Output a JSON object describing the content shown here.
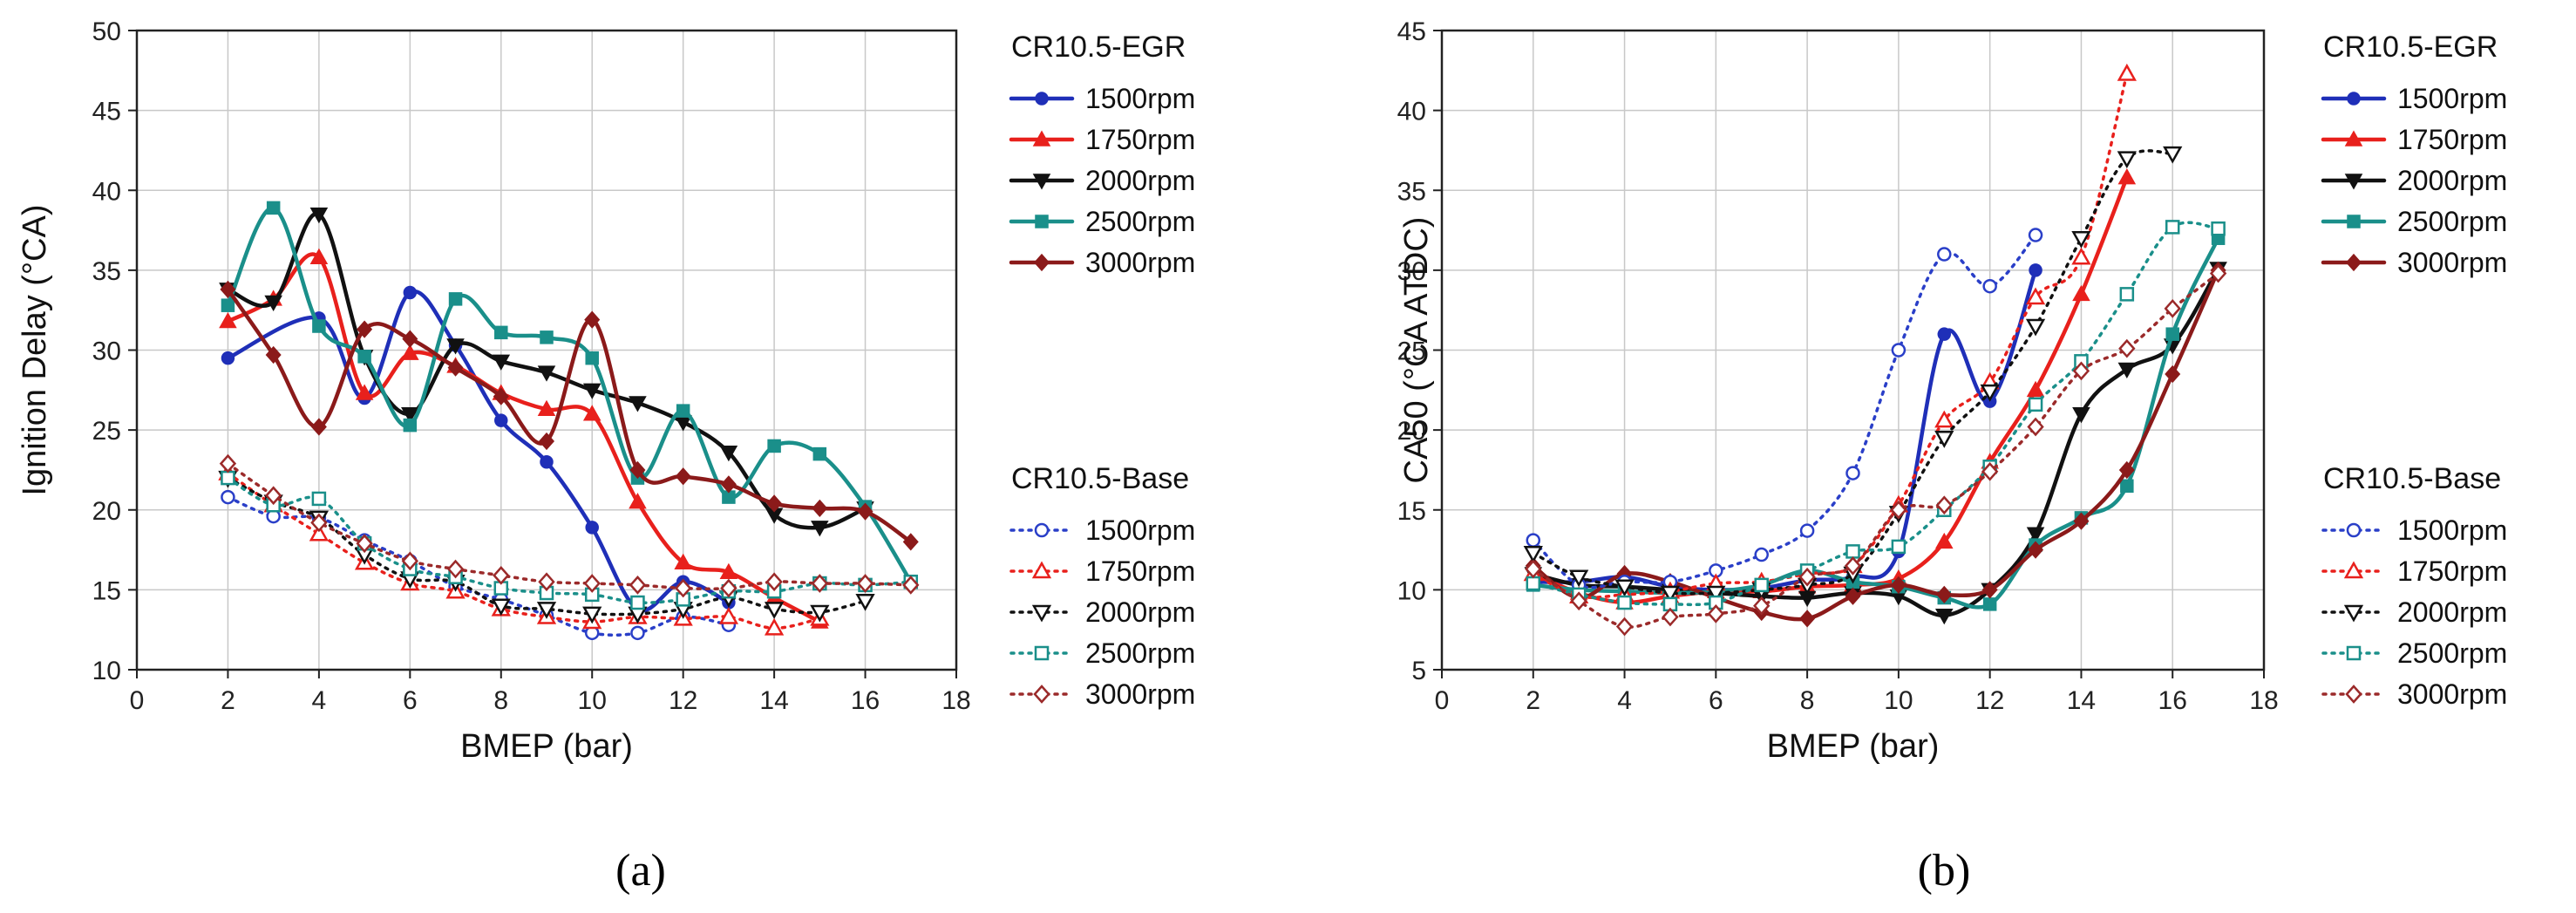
{
  "chart_data": [
    {
      "type": "line",
      "panel_label": "(a)",
      "xlabel": "BMEP (bar)",
      "ylabel": "Ignition Delay (°CA)",
      "xlim": [
        0,
        18
      ],
      "ylim": [
        10,
        50
      ],
      "xticks": [
        0,
        2,
        4,
        6,
        8,
        10,
        12,
        14,
        16,
        18
      ],
      "yticks": [
        10,
        15,
        20,
        25,
        30,
        35,
        40,
        45,
        50
      ],
      "grid": true,
      "legend_groups": [
        {
          "title": "CR10.5-EGR",
          "style": "solid"
        },
        {
          "title": "CR10.5-Base",
          "style": "dotted"
        }
      ],
      "series": [
        {
          "name": "1500rpm",
          "group": "CR10.5-EGR",
          "color": "#1f2fb8",
          "marker": "circle",
          "filled": true,
          "x": [
            2,
            4,
            5,
            6,
            7,
            8,
            9,
            10,
            11,
            12,
            13
          ],
          "y": [
            29.5,
            32,
            27,
            33.6,
            30.3,
            25.6,
            23,
            18.9,
            13.8,
            15.5,
            14.2
          ]
        },
        {
          "name": "1750rpm",
          "group": "CR10.5-EGR",
          "color": "#e8201c",
          "marker": "triangle-up",
          "filled": true,
          "x": [
            2,
            3,
            4,
            5,
            6,
            7,
            8,
            9,
            10,
            11,
            12,
            13,
            14,
            15
          ],
          "y": [
            31.8,
            33.2,
            35.8,
            27.3,
            29.8,
            29,
            27.3,
            26.3,
            26,
            20.5,
            16.7,
            16.1,
            14.5,
            13
          ]
        },
        {
          "name": "2000rpm",
          "group": "CR10.5-EGR",
          "color": "#111111",
          "marker": "triangle-down",
          "filled": true,
          "x": [
            2,
            3,
            4,
            5,
            6,
            7,
            8,
            9,
            10,
            11,
            12,
            13,
            14,
            15,
            16
          ],
          "y": [
            33.8,
            33,
            38.5,
            29.6,
            26,
            30.3,
            29.3,
            28.6,
            27.5,
            26.7,
            25.5,
            23.6,
            19.7,
            18.9,
            20.1
          ]
        },
        {
          "name": "2500rpm",
          "group": "CR10.5-EGR",
          "color": "#1a8f8a",
          "marker": "square",
          "filled": true,
          "x": [
            2,
            3,
            4,
            5,
            6,
            7,
            8,
            9,
            10,
            11,
            12,
            13,
            14,
            15,
            16,
            17
          ],
          "y": [
            32.8,
            38.9,
            31.5,
            29.6,
            25.3,
            33.2,
            31.1,
            30.8,
            29.5,
            22,
            26.2,
            20.8,
            24,
            23.5,
            20.2,
            15.5
          ]
        },
        {
          "name": "3000rpm",
          "group": "CR10.5-EGR",
          "color": "#8b1a1a",
          "marker": "diamond",
          "filled": true,
          "x": [
            2,
            3,
            4,
            5,
            6,
            7,
            8,
            9,
            10,
            11,
            12,
            13,
            14,
            15,
            16,
            17
          ],
          "y": [
            33.8,
            29.7,
            25.2,
            31.3,
            30.7,
            28.9,
            27.1,
            24.3,
            31.9,
            22.5,
            22.1,
            21.6,
            20.4,
            20.1,
            19.9,
            18
          ]
        },
        {
          "name": "1500rpm",
          "group": "CR10.5-Base",
          "color": "#2a3fc8",
          "marker": "circle",
          "filled": false,
          "x": [
            2,
            3,
            4,
            5,
            6,
            7,
            8,
            9,
            10,
            11,
            12,
            13
          ],
          "y": [
            20.8,
            19.6,
            19.5,
            18.1,
            16.8,
            15.2,
            14.4,
            13.4,
            12.3,
            12.3,
            13.3,
            12.8
          ]
        },
        {
          "name": "1750rpm",
          "group": "CR10.5-Base",
          "color": "#e8201c",
          "marker": "triangle-up",
          "filled": false,
          "x": [
            2,
            3,
            4,
            5,
            6,
            7,
            8,
            9,
            10,
            11,
            12,
            13,
            14,
            15
          ],
          "y": [
            22.3,
            20.3,
            18.5,
            16.7,
            15.4,
            14.9,
            13.8,
            13.3,
            13,
            13.3,
            13.2,
            13.3,
            12.6,
            13.2
          ]
        },
        {
          "name": "2000rpm",
          "group": "CR10.5-Base",
          "color": "#111111",
          "marker": "triangle-down",
          "filled": false,
          "x": [
            2,
            3,
            4,
            5,
            6,
            7,
            8,
            9,
            10,
            11,
            12,
            13,
            14,
            15,
            16
          ],
          "y": [
            22,
            20.5,
            19.5,
            17.2,
            15.7,
            15.5,
            14,
            13.8,
            13.5,
            13.5,
            13.8,
            14.5,
            13.8,
            13.6,
            14.3
          ]
        },
        {
          "name": "2500rpm",
          "group": "CR10.5-Base",
          "color": "#1a8f8a",
          "marker": "square",
          "filled": false,
          "x": [
            2,
            3,
            4,
            5,
            6,
            7,
            8,
            9,
            10,
            11,
            12,
            13,
            14,
            15,
            16,
            17
          ],
          "y": [
            22,
            20.3,
            20.7,
            17.9,
            16.3,
            15.8,
            15.1,
            14.8,
            14.7,
            14.2,
            14.4,
            14.9,
            14.9,
            15.4,
            15.3,
            15.5
          ]
        },
        {
          "name": "3000rpm",
          "group": "CR10.5-Base",
          "color": "#9b2a2a",
          "marker": "diamond",
          "filled": false,
          "x": [
            2,
            3,
            4,
            5,
            6,
            7,
            8,
            9,
            10,
            11,
            12,
            13,
            14,
            15,
            16,
            17
          ],
          "y": [
            22.9,
            20.9,
            19.2,
            17.9,
            16.8,
            16.3,
            15.9,
            15.5,
            15.4,
            15.3,
            15.1,
            15.1,
            15.5,
            15.4,
            15.4,
            15.3
          ]
        }
      ]
    },
    {
      "type": "line",
      "panel_label": "(b)",
      "xlabel": "BMEP (bar)",
      "ylabel": "CA50 (°CA ATDC)",
      "xlim": [
        0,
        18
      ],
      "ylim": [
        5,
        45
      ],
      "xticks": [
        0,
        2,
        4,
        6,
        8,
        10,
        12,
        14,
        16,
        18
      ],
      "yticks": [
        5,
        10,
        15,
        20,
        25,
        30,
        35,
        40,
        45
      ],
      "grid": true,
      "legend_groups": [
        {
          "title": "CR10.5-EGR",
          "style": "solid"
        },
        {
          "title": "CR10.5-Base",
          "style": "dotted"
        }
      ],
      "series": [
        {
          "name": "1500rpm",
          "group": "CR10.5-EGR",
          "color": "#1f2fb8",
          "marker": "circle",
          "filled": true,
          "x": [
            2,
            3,
            4,
            5,
            6,
            7,
            8,
            9,
            10,
            11,
            12,
            13
          ],
          "y": [
            10.5,
            10.5,
            10.8,
            10.2,
            10,
            10.1,
            10.6,
            10.8,
            12.4,
            26,
            21.8,
            30
          ]
        },
        {
          "name": "1750rpm",
          "group": "CR10.5-EGR",
          "color": "#e8201c",
          "marker": "triangle-up",
          "filled": true,
          "x": [
            2,
            3,
            4,
            5,
            6,
            7,
            8,
            9,
            10,
            11,
            12,
            13,
            14,
            15
          ],
          "y": [
            11,
            9.8,
            9.2,
            9.6,
            9.9,
            9.9,
            10.2,
            10.3,
            10.7,
            13,
            18,
            22.5,
            28.5,
            35.8
          ]
        },
        {
          "name": "2000rpm",
          "group": "CR10.5-EGR",
          "color": "#111111",
          "marker": "triangle-down",
          "filled": true,
          "x": [
            2,
            3,
            4,
            5,
            6,
            7,
            8,
            9,
            10,
            11,
            12,
            13,
            14,
            15,
            16,
            17
          ],
          "y": [
            11,
            10.3,
            10.2,
            10,
            9.8,
            9.6,
            9.5,
            9.8,
            9.6,
            8.4,
            10,
            13.5,
            21,
            23.8,
            25.3,
            30.1
          ]
        },
        {
          "name": "2500rpm",
          "group": "CR10.5-EGR",
          "color": "#1a8f8a",
          "marker": "square",
          "filled": true,
          "x": [
            2,
            3,
            4,
            5,
            6,
            7,
            8,
            9,
            10,
            11,
            12,
            13,
            14,
            15,
            16,
            17
          ],
          "y": [
            10.3,
            10,
            9.9,
            9.8,
            9.9,
            10.3,
            11.2,
            10.5,
            10.2,
            9.5,
            9.1,
            12.8,
            14.5,
            16.5,
            26,
            32
          ]
        },
        {
          "name": "3000rpm",
          "group": "CR10.5-EGR",
          "color": "#8b1a1a",
          "marker": "diamond",
          "filled": true,
          "x": [
            2,
            3,
            4,
            5,
            6,
            7,
            8,
            9,
            10,
            11,
            12,
            13,
            14,
            15,
            16,
            17
          ],
          "y": [
            11.5,
            9.5,
            11,
            10.5,
            9.5,
            8.6,
            8.2,
            9.6,
            10.3,
            9.7,
            10,
            12.5,
            14.3,
            17.5,
            23.5,
            30
          ]
        },
        {
          "name": "1500rpm",
          "group": "CR10.5-Base",
          "color": "#2a3fc8",
          "marker": "circle",
          "filled": false,
          "x": [
            2,
            3,
            4,
            5,
            6,
            7,
            8,
            9,
            10,
            11,
            12,
            13
          ],
          "y": [
            13.1,
            10.3,
            10.5,
            10.5,
            11.2,
            12.2,
            13.7,
            17.3,
            25,
            31,
            29,
            32.2
          ]
        },
        {
          "name": "1750rpm",
          "group": "CR10.5-Base",
          "color": "#e8201c",
          "marker": "triangle-up",
          "filled": false,
          "x": [
            2,
            3,
            4,
            5,
            6,
            7,
            8,
            9,
            10,
            11,
            12,
            13,
            14,
            15
          ],
          "y": [
            11,
            9.6,
            9.7,
            9.9,
            10.4,
            10.5,
            11,
            11.5,
            15.3,
            20.6,
            23,
            28.3,
            30.8,
            42.3
          ]
        },
        {
          "name": "2000rpm",
          "group": "CR10.5-Base",
          "color": "#111111",
          "marker": "triangle-down",
          "filled": false,
          "x": [
            2,
            3,
            4,
            5,
            6,
            7,
            8,
            9,
            10,
            11,
            12,
            13,
            14,
            15,
            16
          ],
          "y": [
            12.3,
            10.8,
            10.2,
            9.8,
            9.8,
            10,
            10.3,
            11,
            14.8,
            19.5,
            22.4,
            26.5,
            32,
            37,
            37.3
          ]
        },
        {
          "name": "2500rpm",
          "group": "CR10.5-Base",
          "color": "#1a8f8a",
          "marker": "square",
          "filled": false,
          "x": [
            2,
            3,
            4,
            5,
            6,
            7,
            8,
            9,
            10,
            11,
            12,
            13,
            14,
            15,
            16,
            17
          ],
          "y": [
            10.4,
            9.7,
            9.2,
            9.1,
            9.2,
            10.3,
            11.2,
            12.4,
            12.7,
            15,
            17.7,
            21.6,
            24.3,
            28.5,
            32.7,
            32.6
          ]
        },
        {
          "name": "3000rpm",
          "group": "CR10.5-Base",
          "color": "#9b2a2a",
          "marker": "diamond",
          "filled": false,
          "x": [
            2,
            3,
            4,
            5,
            6,
            7,
            8,
            9,
            10,
            11,
            12,
            13,
            14,
            15,
            16,
            17
          ],
          "y": [
            11.3,
            9.3,
            7.7,
            8.3,
            8.5,
            9,
            10.8,
            11.5,
            15,
            15.3,
            17.4,
            20.2,
            23.7,
            25.1,
            27.6,
            29.8
          ]
        }
      ]
    }
  ]
}
